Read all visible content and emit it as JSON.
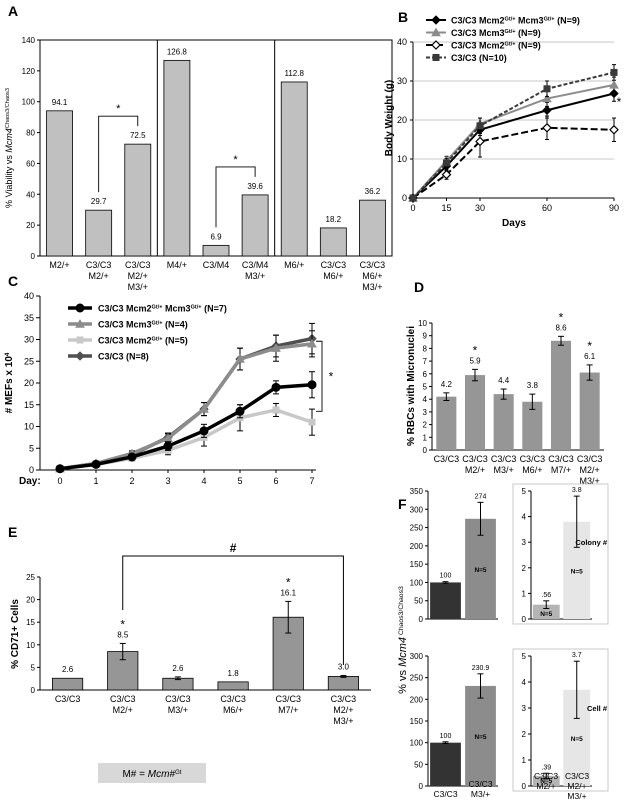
{
  "chart_data": [
    {
      "panel": "A",
      "type": "bar",
      "ylabel_parts": [
        "% Viability vs ",
        "Mcm4",
        "Chaos3/Chaos3"
      ],
      "ylim": [
        0,
        140
      ],
      "yticks": [
        "0",
        "20",
        "40",
        "60",
        "80",
        "100",
        "120",
        "140"
      ],
      "groups": [
        {
          "bars": [
            {
              "label": [
                "M2/+"
              ],
              "value": 94.1,
              "value_label": "94.1"
            },
            {
              "label": [
                "C3/C3",
                "M2/+"
              ],
              "value": 29.7,
              "value_label": "29.7"
            },
            {
              "label": [
                "C3/C3",
                "M2/+",
                "M3/+"
              ],
              "value": 72.5,
              "value_label": "72.5"
            }
          ]
        },
        {
          "bars": [
            {
              "label": [
                "M4/+"
              ],
              "value": 126.8,
              "value_label": "126.8"
            },
            {
              "label": [
                "C3/M4"
              ],
              "value": 6.9,
              "value_label": "6.9"
            },
            {
              "label": [
                "C3/M4",
                "M3/+"
              ],
              "value": 39.6,
              "value_label": "39.6"
            }
          ]
        },
        {
          "bars": [
            {
              "label": [
                "M6/+"
              ],
              "value": 112.8,
              "value_label": "112.8"
            },
            {
              "label": [
                "C3/C3",
                "M6/+"
              ],
              "value": 18.2,
              "value_label": "18.2"
            },
            {
              "label": [
                "C3/C3",
                "M6/+",
                "M3/+"
              ],
              "value": 36.2,
              "value_label": "36.2"
            }
          ]
        }
      ],
      "significance": [
        {
          "group": 0,
          "bar_from": 1,
          "bar_to": 2,
          "symbol": "*"
        },
        {
          "group": 1,
          "bar_from": 1,
          "bar_to": 2,
          "symbol": "*"
        }
      ],
      "bar_color": "#c0c0c0"
    },
    {
      "panel": "B",
      "type": "line",
      "ylabel": "Body Weight (g)",
      "xlabel": "Days",
      "x": [
        0,
        15,
        30,
        60,
        90
      ],
      "xticks": [
        "0",
        "15",
        "30",
        "60",
        "90"
      ],
      "ylim": [
        0,
        40
      ],
      "yticks": [
        "0",
        "10",
        "20",
        "30",
        "40"
      ],
      "series": [
        {
          "name_parts": [
            "C3/C3 Mcm2",
            "Gt/+",
            " Mcm3",
            "Gt/+",
            " (N=9)"
          ],
          "values": [
            0,
            8.2,
            17.5,
            22.5,
            26.8
          ],
          "err": [
            0,
            1.2,
            1.5,
            2,
            2
          ],
          "color": "#000000",
          "marker": "diamond-filled",
          "dash": ""
        },
        {
          "name_parts": [
            "C3/C3 Mcm3",
            "Gt/+",
            " (N=9)"
          ],
          "values": [
            0,
            9.5,
            19,
            25.5,
            29
          ],
          "err": [
            0,
            1.2,
            1.5,
            2,
            2
          ],
          "color": "#8c8c8c",
          "marker": "triangle",
          "dash": ""
        },
        {
          "name_parts": [
            "C3/C3 Mcm2",
            "Gt/+",
            " (N=9)"
          ],
          "values": [
            0,
            6,
            14.5,
            18,
            17.5
          ],
          "err": [
            0,
            1.2,
            4,
            3,
            3
          ],
          "color": "#000000",
          "marker": "diamond-open",
          "dash": "7,3"
        },
        {
          "name_parts": [
            "C3/C3 (N=10)"
          ],
          "values": [
            0,
            9,
            18.5,
            28,
            32.2
          ],
          "err": [
            0,
            1.2,
            2,
            2,
            2
          ],
          "color": "#3a3a3a",
          "marker": "square",
          "dash": "4,2"
        }
      ],
      "annotations": [
        "*"
      ]
    },
    {
      "panel": "C",
      "type": "line",
      "ylabel_parts": [
        "# MEFs x 10",
        "4"
      ],
      "xlabel": "Day:",
      "x": [
        0,
        1,
        2,
        3,
        4,
        5,
        6,
        7
      ],
      "xticks": [
        "0",
        "1",
        "2",
        "3",
        "4",
        "5",
        "6",
        "7"
      ],
      "ylim": [
        0,
        40
      ],
      "yticks": [
        "0",
        "5",
        "10",
        "15",
        "20",
        "25",
        "30",
        "35",
        "40"
      ],
      "series": [
        {
          "name_parts": [
            "C3/C3 Mcm2",
            "Gt/+",
            " Mcm3",
            "Gt/+",
            " (N=7)"
          ],
          "values": [
            0.3,
            1.3,
            3,
            5.5,
            9,
            13.5,
            19,
            19.6
          ],
          "err": [
            0.3,
            0.5,
            0.6,
            1,
            1.5,
            1.5,
            1.5,
            3
          ],
          "color": "#000000",
          "marker": "circle",
          "width": 3.5
        },
        {
          "name_parts": [
            "C3/C3 Mcm3",
            "Gt/+",
            " (N=4)"
          ],
          "values": [
            0.3,
            1.5,
            3.8,
            7.3,
            14,
            25.5,
            28,
            29
          ],
          "err": [
            0.3,
            0.5,
            0.6,
            1,
            1.5,
            2.5,
            3,
            3
          ],
          "color": "#8c8c8c",
          "marker": "triangle",
          "width": 3.5
        },
        {
          "name_parts": [
            "C3/C3 Mcm2",
            "Gt/+",
            " (N=5)"
          ],
          "values": [
            0.3,
            1.3,
            2.7,
            4.5,
            7.5,
            12,
            13.8,
            11
          ],
          "err": [
            0.3,
            0.5,
            0.6,
            1,
            2,
            3,
            1.5,
            3
          ],
          "color": "#c8c8c8",
          "marker": "square",
          "width": 3.5
        },
        {
          "name_parts": [
            "C3/C3 (N=8)"
          ],
          "values": [
            0.3,
            1.5,
            3.5,
            7.5,
            14,
            25.5,
            28.5,
            30.2
          ],
          "err": [
            0.3,
            0.5,
            0.6,
            1,
            1.5,
            2.5,
            2.5,
            3.5
          ],
          "color": "#505050",
          "marker": "diamond",
          "width": 3.5
        }
      ],
      "annotations": [
        "*"
      ]
    },
    {
      "panel": "D",
      "type": "bar",
      "ylabel": "% RBCs with Micronuclei",
      "ylim": [
        0,
        10
      ],
      "yticks": [
        "0",
        "1",
        "2",
        "3",
        "4",
        "5",
        "6",
        "7",
        "8",
        "9",
        "10"
      ],
      "bars": [
        {
          "label": [
            "C3/C3"
          ],
          "value": 4.2,
          "value_label": "4.2",
          "err": 0.3,
          "star": ""
        },
        {
          "label": [
            "C3/C3",
            "M2/+"
          ],
          "value": 5.9,
          "value_label": "5.9",
          "err": 0.45,
          "star": "*"
        },
        {
          "label": [
            "C3/C3",
            "M3/+"
          ],
          "value": 4.4,
          "value_label": "4.4",
          "err": 0.4,
          "star": ""
        },
        {
          "label": [
            "C3/C3",
            "M6/+"
          ],
          "value": 3.8,
          "value_label": "3.8",
          "err": 0.6,
          "star": ""
        },
        {
          "label": [
            "C3/C3",
            "M7/+"
          ],
          "value": 8.6,
          "value_label": "8.6",
          "err": 0.35,
          "star": "*"
        },
        {
          "label": [
            "C3/C3",
            "M2/+",
            "M3/+"
          ],
          "value": 6.1,
          "value_label": "6.1",
          "err": 0.6,
          "star": "*"
        }
      ],
      "bar_color": "#969696"
    },
    {
      "panel": "E",
      "type": "bar",
      "ylabel": "% CD71+ Cells",
      "ylim": [
        0,
        25
      ],
      "yticks": [
        "0",
        "5",
        "10",
        "15",
        "20",
        "25"
      ],
      "bars": [
        {
          "label": [
            "C3/C3"
          ],
          "value": 2.6,
          "value_label": "2.6",
          "err": 0,
          "star": ""
        },
        {
          "label": [
            "C3/C3",
            "M2/+"
          ],
          "value": 8.5,
          "value_label": "8.5",
          "err": 1.8,
          "star": "*"
        },
        {
          "label": [
            "C3/C3",
            "M3/+"
          ],
          "value": 2.6,
          "value_label": "2.6",
          "err": 0.3,
          "star": ""
        },
        {
          "label": [
            "C3/C3",
            "M6/+"
          ],
          "value": 1.8,
          "value_label": "1.8",
          "err": 0,
          "star": ""
        },
        {
          "label": [
            "C3/C3",
            "M7/+"
          ],
          "value": 16.1,
          "value_label": "16.1",
          "err": 3.5,
          "star": "*"
        },
        {
          "label": [
            "C3/C3",
            "M2/+",
            "M3/+"
          ],
          "value": 3.0,
          "value_label": "3.0",
          "err": 0.2,
          "star": ""
        }
      ],
      "bracket": {
        "from": 1,
        "to": 5,
        "symbol": "#"
      },
      "footnote_parts": [
        "M# = ",
        "Mcm#",
        "Gt"
      ],
      "bar_color": "#969696"
    },
    {
      "panel": "F",
      "type": "bar",
      "shared_ylabel_parts": [
        "% vs ",
        "Mcm4",
        " Chaos3/Chaos3"
      ],
      "subplots": [
        {
          "name": "left-top",
          "ylim": [
            0,
            350
          ],
          "yticks": [
            "0",
            "50",
            "100",
            "150",
            "200",
            "250",
            "300",
            "350"
          ],
          "bars": [
            {
              "value": 100,
              "value_label": "100",
              "err": 2,
              "color": "#333333",
              "n": ""
            },
            {
              "value": 274,
              "value_label": "274",
              "err": 45,
              "color": "#8c8c8c",
              "n": "N=5"
            }
          ],
          "caption": ""
        },
        {
          "name": "right-top",
          "ylim": [
            0,
            5
          ],
          "yticks": [
            "0",
            "1",
            "2",
            "3",
            "4",
            "5"
          ],
          "bars": [
            {
              "value": 0.56,
              "value_label": ".56",
              "err": 0.15,
              "color": "#b4b4b4",
              "n": "N=5"
            },
            {
              "value": 3.8,
              "value_label": "3.8",
              "err": 1.0,
              "color": "#e6e6e6",
              "n": "N=5"
            }
          ],
          "caption": "Colony #"
        },
        {
          "name": "left-bottom",
          "ylim": [
            0,
            300
          ],
          "yticks": [
            "0",
            "50",
            "100",
            "150",
            "200",
            "250",
            "300"
          ],
          "bars": [
            {
              "value": 100,
              "value_label": "100",
              "err": 2,
              "color": "#333333",
              "n": ""
            },
            {
              "value": 230.9,
              "value_label": "230.9",
              "err": 28,
              "color": "#8c8c8c",
              "n": "N=5"
            }
          ],
          "caption": ""
        },
        {
          "name": "right-bottom",
          "ylim": [
            0,
            5
          ],
          "yticks": [
            "0",
            "1",
            "2",
            "3",
            "4",
            "5"
          ],
          "bars": [
            {
              "value": 0.39,
              "value_label": ".39",
              "err": 0.1,
              "color": "#b4b4b4",
              "n": "N=5"
            },
            {
              "value": 3.7,
              "value_label": "3.7",
              "err": 1.1,
              "color": "#e6e6e6",
              "n": "N=5"
            }
          ],
          "caption": "Cell #"
        }
      ],
      "xlabels_left": [
        [
          "C3/C3"
        ],
        [
          "C3/C3",
          "M3/+"
        ]
      ],
      "xlabels_right": [
        [
          "C3/C3",
          "M2/+"
        ],
        [
          "C3/C3",
          "M2/+",
          "M3/+"
        ]
      ]
    }
  ],
  "panel_letters": [
    "A",
    "B",
    "C",
    "D",
    "E",
    "F"
  ]
}
